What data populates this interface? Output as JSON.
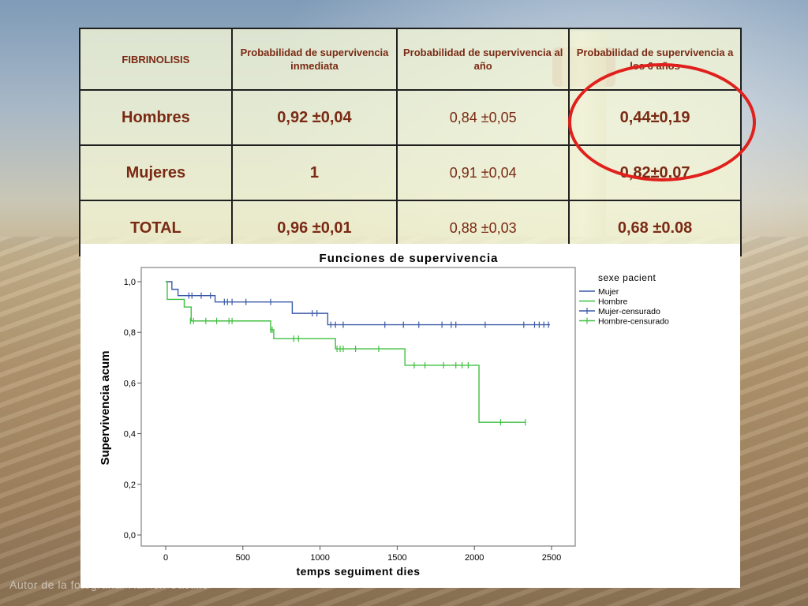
{
  "table": {
    "headers": [
      "FIBRINOLISIS",
      "Probabilidad de supervivencia inmediata",
      "Probabilidad de supervivencia al año",
      "Probabilidad de supervivencia a los 6 años"
    ],
    "rows": [
      {
        "label": "Hombres",
        "c1": "0,92 ±0,04",
        "c2": "0,84 ±0,05",
        "c3": "0,44±0,19"
      },
      {
        "label": "Mujeres",
        "c1": "1",
        "c2": "0,91 ±0,04",
        "c3": "0,82±0,07"
      },
      {
        "label": "TOTAL",
        "c1": "0,96 ±0,01",
        "c2": "0,88 ±0,03",
        "c3": "0,68 ±0.08"
      }
    ]
  },
  "colors": {
    "highlight_ring": "#e0201c",
    "mujer": "#3a5aa8",
    "hombre": "#3fbf3f",
    "header_text": "#7a2a14",
    "value_text": "#1b2a6b"
  },
  "credit": "Autor de la fotografía: Ramón Castillo",
  "chart_data": {
    "type": "line",
    "title": "Funciones de supervivencia",
    "xlabel": "temps seguiment dies",
    "ylabel": "Supervivencia acum",
    "xlim": [
      0,
      2500
    ],
    "ylim": [
      0,
      1.0
    ],
    "x_ticks": [
      0,
      500,
      1000,
      1500,
      2000,
      2500
    ],
    "y_ticks": [
      0.0,
      0.2,
      0.4,
      0.6,
      0.8,
      1.0
    ],
    "y_tick_labels": [
      "0,0",
      "0,2",
      "0,4",
      "0,6",
      "0,8",
      "1,0"
    ],
    "legend_title": "sexe pacient",
    "legend_position": "right",
    "grid": false,
    "series": [
      {
        "name": "Mujer",
        "step": true,
        "x": [
          0,
          40,
          80,
          320,
          420,
          820,
          1050,
          2490
        ],
        "y": [
          1.0,
          0.97,
          0.945,
          0.92,
          0.92,
          0.875,
          0.83,
          0.83
        ]
      },
      {
        "name": "Hombre",
        "step": true,
        "x": [
          0,
          10,
          120,
          165,
          680,
          700,
          1100,
          1550,
          2030,
          2330
        ],
        "y": [
          1.0,
          0.93,
          0.9,
          0.845,
          0.81,
          0.775,
          0.735,
          0.67,
          0.445,
          0.445
        ]
      },
      {
        "name": "Mujer-censurado",
        "marker": "+",
        "x": [
          150,
          170,
          230,
          290,
          380,
          400,
          430,
          520,
          680,
          950,
          980,
          1070,
          1100,
          1150,
          1420,
          1540,
          1640,
          1790,
          1850,
          1880,
          2070,
          2320,
          2390,
          2420,
          2450,
          2480
        ],
        "y": [
          0.945,
          0.945,
          0.945,
          0.945,
          0.92,
          0.92,
          0.92,
          0.92,
          0.92,
          0.875,
          0.875,
          0.83,
          0.83,
          0.83,
          0.83,
          0.83,
          0.83,
          0.83,
          0.83,
          0.83,
          0.83,
          0.83,
          0.83,
          0.83,
          0.83,
          0.83
        ]
      },
      {
        "name": "Hombre-censurado",
        "marker": "+",
        "x": [
          160,
          180,
          260,
          330,
          410,
          430,
          680,
          690,
          830,
          860,
          1110,
          1130,
          1150,
          1230,
          1380,
          1610,
          1680,
          1800,
          1880,
          1920,
          1960,
          2170,
          2330
        ],
        "y": [
          0.845,
          0.845,
          0.845,
          0.845,
          0.845,
          0.845,
          0.81,
          0.81,
          0.775,
          0.775,
          0.735,
          0.735,
          0.735,
          0.735,
          0.735,
          0.67,
          0.67,
          0.67,
          0.67,
          0.67,
          0.67,
          0.445,
          0.445
        ]
      }
    ]
  }
}
